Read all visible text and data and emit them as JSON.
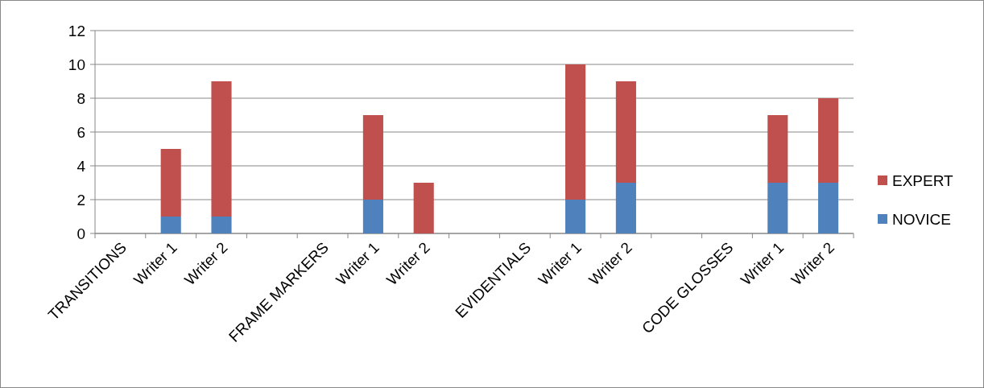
{
  "chart_data": {
    "type": "bar",
    "stacked": true,
    "categories": [
      "TRANSITIONS",
      "Writer 1",
      "Writer 2",
      null,
      "FRAME MARKERS",
      "Writer 1",
      "Writer 2",
      null,
      "EVIDENTIALS",
      "Writer 1",
      "Writer 2",
      null,
      "CODE GLOSSES",
      "Writer 1",
      "Writer 2"
    ],
    "series": [
      {
        "name": "NOVICE",
        "color": "#4f81bd",
        "values": [
          null,
          1,
          1,
          null,
          null,
          2,
          0,
          null,
          null,
          2,
          3,
          null,
          null,
          3,
          3
        ]
      },
      {
        "name": "EXPERT",
        "color": "#c0504d",
        "values": [
          null,
          4,
          8,
          null,
          null,
          5,
          3,
          null,
          null,
          8,
          6,
          null,
          null,
          4,
          5
        ]
      }
    ],
    "ylim": [
      0,
      12
    ],
    "yticks": [
      0,
      2,
      4,
      6,
      8,
      10,
      12
    ],
    "grid": "y",
    "legend": "right"
  }
}
